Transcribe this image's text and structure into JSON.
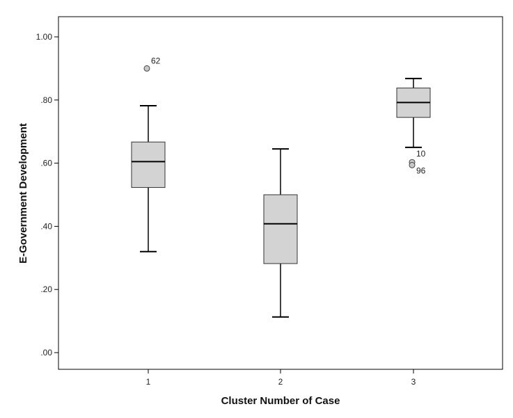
{
  "chart_data": {
    "type": "boxplot",
    "title": "",
    "xlabel": "Cluster Number of Case",
    "ylabel": "E-Government Development",
    "ylim": [
      -0.05,
      1.08
    ],
    "y_ticks": [
      0.0,
      0.2,
      0.4,
      0.6,
      0.8,
      1.0
    ],
    "y_tick_labels": [
      ".00",
      ".20",
      ".40",
      ".60",
      ".80",
      "1.00"
    ],
    "categories": [
      "1",
      "2",
      "3"
    ],
    "grid": false,
    "legend": "none",
    "box_fill": "#d3d3d3",
    "outline_color": "#000000",
    "boxes": [
      {
        "category": "1",
        "whisker_low": 0.32,
        "q1": 0.523,
        "median": 0.605,
        "q3": 0.667,
        "whisker_high": 0.782,
        "outliers": [
          {
            "value": 0.9,
            "label": "62"
          }
        ]
      },
      {
        "category": "2",
        "whisker_low": 0.113,
        "q1": 0.282,
        "median": 0.408,
        "q3": 0.5,
        "whisker_high": 0.645,
        "outliers": []
      },
      {
        "category": "3",
        "whisker_low": 0.65,
        "q1": 0.745,
        "median": 0.792,
        "q3": 0.838,
        "whisker_high": 0.868,
        "outliers": [
          {
            "value": 0.603,
            "label": "10"
          },
          {
            "value": 0.594,
            "label": "96"
          }
        ]
      }
    ]
  }
}
